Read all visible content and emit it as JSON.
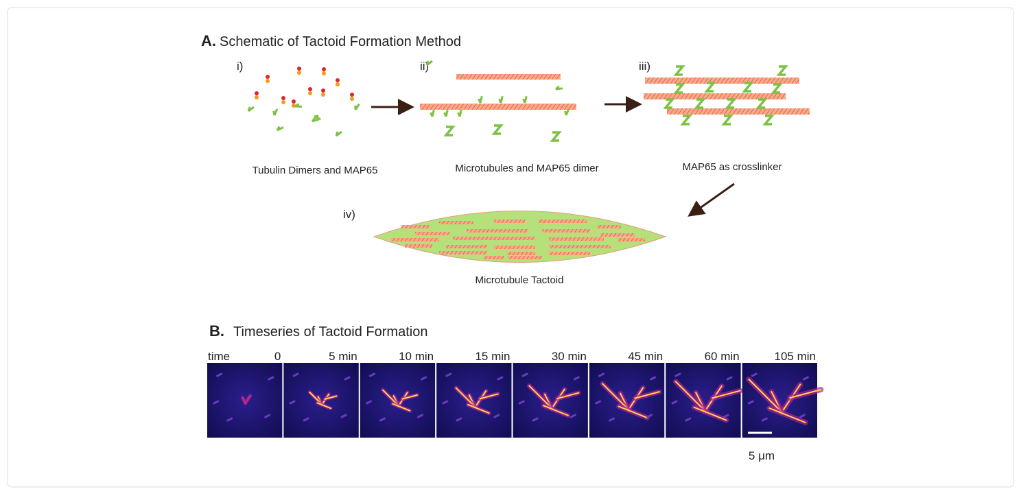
{
  "panel_a": {
    "letter": "A.",
    "title": "Schematic of Tactoid Formation Method",
    "steps": [
      {
        "label": "i)",
        "caption": "Tubulin Dimers and MAP65"
      },
      {
        "label": "ii)",
        "caption": "Microtubules and MAP65 dimer"
      },
      {
        "label": "iii)",
        "caption": "MAP65 as crosslinker"
      },
      {
        "label": "iv)",
        "caption": "Microtubule Tactoid"
      }
    ]
  },
  "panel_b": {
    "letter": "B.",
    "title": "Timeseries of Tactoid Formation",
    "time_label": "time",
    "frames": [
      "0",
      "5 min",
      "10 min",
      "15 min",
      "30 min",
      "45 min",
      "60 min",
      "105 min"
    ],
    "scale_bar": "5 μm"
  }
}
